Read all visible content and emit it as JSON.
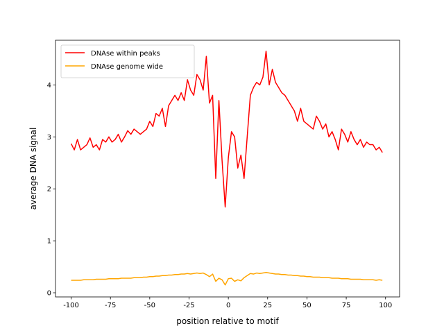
{
  "chart_data": {
    "type": "line",
    "xlabel": "position relative to motif",
    "ylabel": "average DNA signal",
    "x": [
      -100,
      -98,
      -96,
      -94,
      -92,
      -90,
      -88,
      -86,
      -84,
      -82,
      -80,
      -78,
      -76,
      -74,
      -72,
      -70,
      -68,
      -66,
      -64,
      -62,
      -60,
      -58,
      -56,
      -54,
      -52,
      -50,
      -48,
      -46,
      -44,
      -42,
      -40,
      -38,
      -36,
      -34,
      -32,
      -30,
      -28,
      -26,
      -24,
      -22,
      -20,
      -18,
      -16,
      -14,
      -12,
      -10,
      -8,
      -6,
      -4,
      -2,
      0,
      2,
      4,
      6,
      8,
      10,
      12,
      14,
      16,
      18,
      20,
      22,
      24,
      26,
      28,
      30,
      32,
      34,
      36,
      38,
      40,
      42,
      44,
      46,
      48,
      50,
      52,
      54,
      56,
      58,
      60,
      62,
      64,
      66,
      68,
      70,
      72,
      74,
      76,
      78,
      80,
      82,
      84,
      86,
      88,
      90,
      92,
      94,
      96,
      98
    ],
    "series": [
      {
        "name": "DNAse within peaks",
        "color": "#ff0000",
        "values": [
          2.87,
          2.75,
          2.95,
          2.75,
          2.8,
          2.85,
          2.98,
          2.8,
          2.85,
          2.75,
          2.95,
          2.9,
          3.0,
          2.9,
          2.95,
          3.05,
          2.9,
          3.0,
          3.12,
          3.05,
          3.15,
          3.1,
          3.05,
          3.1,
          3.15,
          3.3,
          3.2,
          3.45,
          3.4,
          3.55,
          3.2,
          3.6,
          3.7,
          3.8,
          3.7,
          3.85,
          3.7,
          4.1,
          3.9,
          3.8,
          4.2,
          4.1,
          3.9,
          4.55,
          3.65,
          3.8,
          2.2,
          3.7,
          2.55,
          1.65,
          2.6,
          3.1,
          3.0,
          2.4,
          2.65,
          2.2,
          3.0,
          3.8,
          3.95,
          4.05,
          4.0,
          4.15,
          4.65,
          4.0,
          4.3,
          4.05,
          3.95,
          3.85,
          3.8,
          3.7,
          3.6,
          3.5,
          3.3,
          3.55,
          3.3,
          3.25,
          3.2,
          3.15,
          3.4,
          3.3,
          3.15,
          3.25,
          3.0,
          3.1,
          2.95,
          2.75,
          3.15,
          3.05,
          2.9,
          3.1,
          2.95,
          2.85,
          2.95,
          2.8,
          2.9,
          2.85,
          2.85,
          2.75,
          2.8,
          2.7
        ]
      },
      {
        "name": "DNAse genome wide",
        "color": "#ffa500",
        "values": [
          0.24,
          0.24,
          0.24,
          0.24,
          0.25,
          0.25,
          0.25,
          0.25,
          0.26,
          0.26,
          0.26,
          0.26,
          0.27,
          0.27,
          0.27,
          0.27,
          0.28,
          0.28,
          0.28,
          0.28,
          0.29,
          0.29,
          0.29,
          0.3,
          0.3,
          0.31,
          0.31,
          0.32,
          0.32,
          0.33,
          0.33,
          0.34,
          0.34,
          0.35,
          0.35,
          0.36,
          0.36,
          0.37,
          0.36,
          0.37,
          0.38,
          0.37,
          0.38,
          0.35,
          0.31,
          0.36,
          0.22,
          0.28,
          0.25,
          0.15,
          0.27,
          0.28,
          0.22,
          0.25,
          0.23,
          0.29,
          0.33,
          0.37,
          0.36,
          0.38,
          0.37,
          0.38,
          0.39,
          0.38,
          0.37,
          0.36,
          0.36,
          0.35,
          0.35,
          0.34,
          0.34,
          0.33,
          0.33,
          0.32,
          0.32,
          0.31,
          0.31,
          0.3,
          0.3,
          0.3,
          0.29,
          0.29,
          0.29,
          0.28,
          0.28,
          0.28,
          0.27,
          0.27,
          0.27,
          0.26,
          0.26,
          0.26,
          0.26,
          0.25,
          0.25,
          0.25,
          0.25,
          0.24,
          0.25,
          0.24
        ]
      }
    ],
    "xlim": [
      -109.95,
      108.95
    ],
    "xticks": [
      -100,
      -75,
      -50,
      -25,
      0,
      25,
      50,
      75,
      100
    ],
    "ylim": [
      -0.08,
      4.86
    ],
    "yticks": [
      0,
      1,
      2,
      3,
      4
    ],
    "legend": "upper left",
    "grid": false
  }
}
